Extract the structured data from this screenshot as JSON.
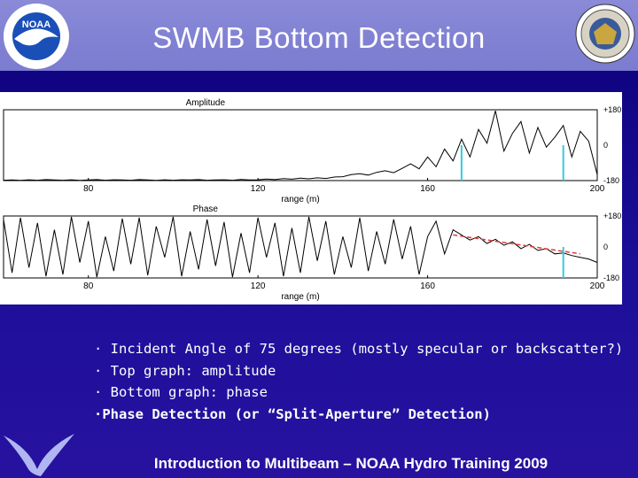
{
  "slide": {
    "title": "SWMB Bottom Detection",
    "footer": "Introduction to Multibeam – NOAA Hydro Training 2009",
    "bullets": [
      "· Incident Angle of 75 degrees (mostly specular or backscatter?)",
      "· Top graph: amplitude",
      "· Bottom graph: phase",
      "·Phase Detection (or “Split-Aperture” Detection)"
    ],
    "logo_left_text": "NOAA",
    "colors": {
      "header": "#7b7bd0",
      "background": "#1d0f9a",
      "trace": "#000000",
      "marker": "#33ccdd",
      "fit": "#e53935"
    }
  },
  "chart_data": [
    {
      "type": "line",
      "title": "Amplitude",
      "xlabel": "range (m)",
      "xlim": [
        60,
        200
      ],
      "xticks": [
        80,
        120,
        160,
        200
      ],
      "ylim": [
        -180,
        180
      ],
      "yticks": [
        "+180",
        "0",
        "-180"
      ],
      "series": [
        {
          "x": [
            60,
            62,
            64,
            66,
            68,
            70,
            72,
            74,
            76,
            78,
            80,
            82,
            84,
            86,
            88,
            90,
            92,
            94,
            96,
            98,
            100,
            102,
            104,
            106,
            108,
            110,
            112,
            114,
            116,
            118,
            120,
            122,
            124,
            126,
            128,
            130,
            132,
            134,
            136,
            138,
            140,
            142,
            144,
            146,
            148,
            150,
            152,
            154,
            156,
            158,
            160,
            162,
            164,
            166,
            168,
            170,
            172,
            174,
            176,
            178,
            180,
            182,
            184,
            186,
            188,
            190,
            192,
            194,
            196,
            198,
            200
          ],
          "y": [
            -178,
            -177,
            -179,
            -176,
            -178,
            -175,
            -177,
            -178,
            -176,
            -179,
            -177,
            -175,
            -178,
            -176,
            -177,
            -178,
            -175,
            -177,
            -179,
            -176,
            -178,
            -176,
            -177,
            -175,
            -178,
            -177,
            -176,
            -178,
            -174,
            -177,
            -176,
            -172,
            -175,
            -170,
            -173,
            -168,
            -171,
            -166,
            -169,
            -162,
            -160,
            -150,
            -145,
            -152,
            -138,
            -130,
            -140,
            -118,
            -95,
            -120,
            -60,
            -110,
            -20,
            -80,
            30,
            -60,
            80,
            10,
            175,
            -30,
            60,
            120,
            -40,
            90,
            -10,
            40,
            100,
            -60,
            70,
            20,
            -150
          ]
        }
      ],
      "markers": {
        "vertical_lines_at_range": [
          168,
          192
        ],
        "color": "cyan"
      }
    },
    {
      "type": "line",
      "title": "Phase",
      "xlabel": "range (m)",
      "xlim": [
        60,
        200
      ],
      "xticks": [
        80,
        120,
        160,
        200
      ],
      "ylim": [
        -180,
        180
      ],
      "yticks": [
        "+180",
        "0",
        "-180"
      ],
      "series": [
        {
          "x": [
            60,
            62,
            64,
            66,
            68,
            70,
            72,
            74,
            76,
            78,
            80,
            82,
            84,
            86,
            88,
            90,
            92,
            94,
            96,
            98,
            100,
            102,
            104,
            106,
            108,
            110,
            112,
            114,
            116,
            118,
            120,
            122,
            124,
            126,
            128,
            130,
            132,
            134,
            136,
            138,
            140,
            142,
            144,
            146,
            148,
            150,
            152,
            154,
            156,
            158,
            160,
            162,
            164,
            166,
            168,
            170,
            172,
            174,
            176,
            178,
            180,
            182,
            184,
            186,
            188,
            190,
            192,
            194,
            196,
            198,
            200
          ],
          "y": [
            160,
            -150,
            170,
            -120,
            140,
            -170,
            100,
            -160,
            175,
            -90,
            150,
            -175,
            60,
            -140,
            165,
            -100,
            170,
            -165,
            120,
            -60,
            175,
            -170,
            90,
            -130,
            160,
            -110,
            145,
            -175,
            80,
            -150,
            170,
            -60,
            140,
            -170,
            110,
            -150,
            175,
            -80,
            150,
            -160,
            60,
            -120,
            170,
            -140,
            90,
            -100,
            160,
            -70,
            120,
            -160,
            60,
            150,
            -40,
            100,
            70,
            40,
            60,
            20,
            45,
            10,
            30,
            -10,
            15,
            -20,
            -10,
            -40,
            -35,
            -50,
            -60,
            -70,
            -90
          ]
        }
      ],
      "fit_line": {
        "color": "red",
        "x": [
          166,
          196
        ],
        "y": [
          70,
          -40
        ]
      },
      "markers": {
        "vertical_lines_at_range": [
          192
        ],
        "color": "cyan"
      }
    }
  ]
}
